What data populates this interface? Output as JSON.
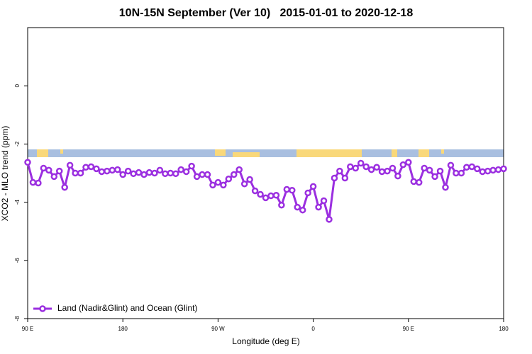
{
  "chart_data": {
    "type": "line",
    "title": "10N-15N September (Ver 10)   2015-01-01 to 2020-12-18",
    "x_label": "Longitude (deg E)",
    "y_label": "XCO2 - MLO trend (ppm)",
    "xlim": [
      90,
      540
    ],
    "xticks": [
      {
        "value": 90,
        "label": "90 E"
      },
      180,
      {
        "value": 270,
        "label": "90 W"
      },
      {
        "value": 360,
        "label": "0"
      },
      {
        "value": 450,
        "label": "90 E"
      },
      {
        "value": 540,
        "label": "180"
      }
    ],
    "ylim": [
      -8,
      2
    ],
    "yticks": [
      -8,
      -6,
      -4,
      -2,
      0
    ],
    "legend": "bottom-left",
    "x": [
      90,
      95,
      100,
      105,
      110,
      115,
      120,
      125,
      130,
      135,
      140,
      145,
      150,
      155,
      160,
      165,
      170,
      175,
      180,
      185,
      190,
      195,
      200,
      205,
      210,
      215,
      220,
      225,
      230,
      235,
      240,
      245,
      250,
      255,
      260,
      265,
      270,
      275,
      280,
      285,
      290,
      295,
      300,
      305,
      310,
      315,
      320,
      325,
      330,
      335,
      340,
      345,
      350,
      355,
      360,
      365,
      370,
      375,
      380,
      385,
      390,
      395,
      400,
      405,
      410,
      415,
      420,
      425,
      430,
      435,
      440,
      445,
      450,
      455,
      460,
      465,
      470,
      475,
      480,
      485,
      490,
      495,
      500,
      505,
      510,
      515,
      520,
      525,
      530,
      535,
      540
    ],
    "series": [
      {
        "name": "Land (Nadir&Glint) and Ocean (Glint)",
        "color": "#9b2fe0",
        "values": [
          -2.63,
          -3.32,
          -3.34,
          -2.83,
          -2.9,
          -3.12,
          -2.93,
          -3.49,
          -2.73,
          -3.0,
          -3.0,
          -2.8,
          -2.78,
          -2.85,
          -2.95,
          -2.93,
          -2.9,
          -2.88,
          -3.05,
          -2.93,
          -3.02,
          -2.98,
          -3.05,
          -2.98,
          -3.0,
          -2.9,
          -3.02,
          -3.0,
          -3.02,
          -2.88,
          -2.95,
          -2.76,
          -3.12,
          -3.05,
          -3.05,
          -3.41,
          -3.32,
          -3.41,
          -3.2,
          -3.05,
          -2.88,
          -3.37,
          -3.22,
          -3.61,
          -3.73,
          -3.85,
          -3.78,
          -3.76,
          -4.1,
          -3.56,
          -3.59,
          -4.17,
          -4.27,
          -3.68,
          -3.46,
          -4.17,
          -3.95,
          -4.59,
          -3.17,
          -2.93,
          -3.17,
          -2.78,
          -2.83,
          -2.66,
          -2.78,
          -2.88,
          -2.8,
          -2.95,
          -2.93,
          -2.83,
          -3.1,
          -2.71,
          -2.63,
          -3.29,
          -3.32,
          -2.83,
          -2.9,
          -3.12,
          -2.93,
          -3.49,
          -2.73,
          -3.0,
          -3.0,
          -2.8,
          -2.78,
          -2.85,
          -2.95,
          -2.93,
          -2.9,
          -2.88,
          -2.85
        ]
      }
    ]
  }
}
